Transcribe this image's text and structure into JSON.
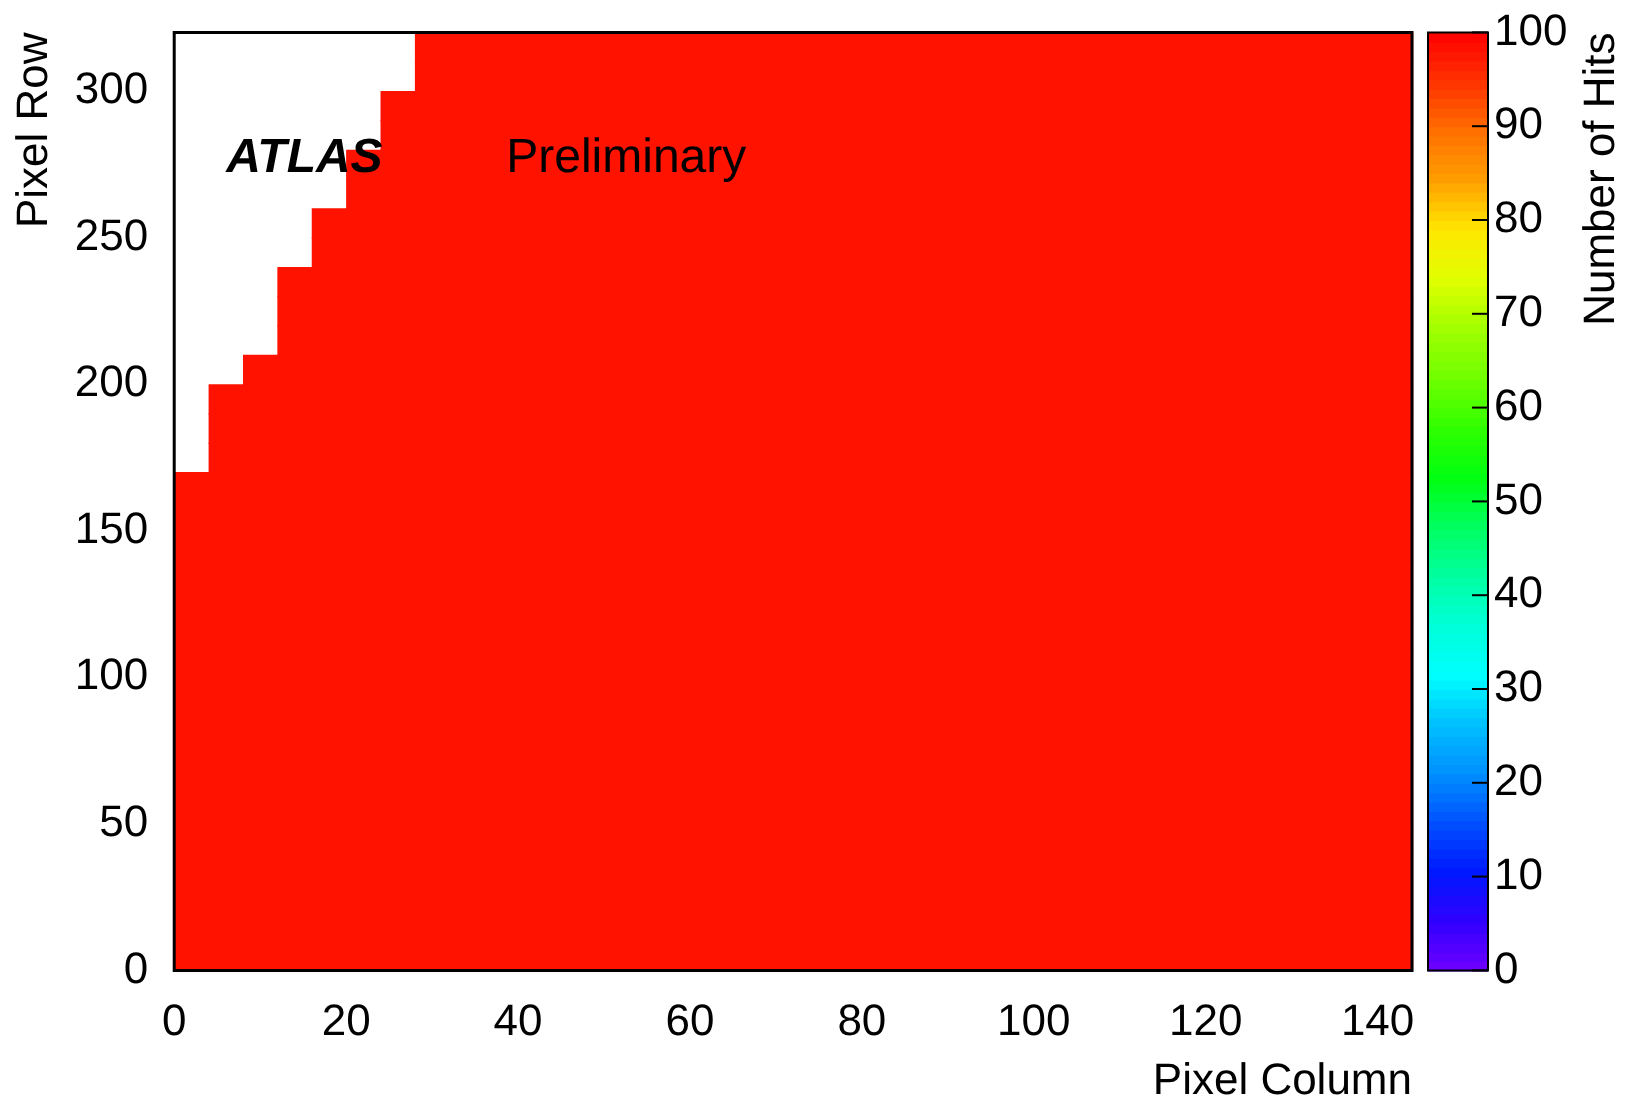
{
  "chart_data": {
    "type": "heatmap",
    "xlabel": "Pixel Column",
    "ylabel": "Pixel Row",
    "clabel": "Number of Hits",
    "annotations": [
      "ATLAS",
      "Preliminary"
    ],
    "x": [
      2,
      6,
      10,
      14,
      18,
      22,
      26,
      30,
      34,
      38,
      42,
      46,
      50,
      54,
      58,
      62,
      66,
      70,
      74,
      78,
      82,
      86,
      90,
      94,
      98,
      102,
      106,
      110,
      114,
      118,
      122,
      126,
      130,
      134,
      138,
      142
    ],
    "y": [
      315,
      305,
      295,
      285,
      275,
      265,
      255,
      245,
      235,
      225,
      215,
      205,
      195,
      185,
      175,
      165,
      155,
      145,
      135,
      125,
      115,
      105,
      95,
      85,
      75,
      65,
      55,
      45,
      35,
      25,
      15,
      5
    ],
    "xlim": [
      0,
      144
    ],
    "xticks": [
      0,
      20,
      40,
      60,
      80,
      100,
      120,
      140
    ],
    "ylim": [
      0,
      320
    ],
    "yticks": [
      0,
      50,
      100,
      150,
      200,
      250,
      300
    ],
    "clim": [
      0,
      100
    ],
    "cticks": [
      0,
      10,
      20,
      30,
      40,
      50,
      60,
      70,
      80,
      90,
      100
    ],
    "grid": false,
    "cells": [
      [
        null,
        null,
        null,
        null,
        null,
        null,
        null,
        98,
        98,
        98,
        98,
        98,
        98,
        98,
        98,
        98,
        98,
        98,
        98,
        98,
        98,
        98,
        98,
        98,
        98,
        98,
        98,
        98,
        98,
        98,
        98,
        98,
        98,
        98,
        98,
        98
      ],
      [
        null,
        null,
        null,
        null,
        null,
        null,
        null,
        98,
        98,
        98,
        98,
        98,
        98,
        98,
        98,
        98,
        98,
        98,
        98,
        98,
        98,
        98,
        98,
        98,
        98,
        98,
        98,
        98,
        98,
        98,
        98,
        98,
        98,
        98,
        98,
        98
      ],
      [
        null,
        null,
        null,
        null,
        null,
        null,
        98,
        98,
        98,
        98,
        98,
        98,
        98,
        98,
        98,
        98,
        98,
        98,
        98,
        98,
        98,
        98,
        98,
        98,
        98,
        98,
        98,
        98,
        98,
        98,
        98,
        98,
        98,
        98,
        98,
        98
      ],
      [
        null,
        null,
        null,
        null,
        null,
        null,
        98,
        98,
        98,
        98,
        98,
        98,
        98,
        98,
        98,
        98,
        98,
        98,
        98,
        98,
        98,
        98,
        98,
        98,
        98,
        98,
        98,
        98,
        98,
        98,
        98,
        98,
        98,
        98,
        98,
        98
      ],
      [
        null,
        null,
        null,
        null,
        null,
        98,
        98,
        98,
        98,
        98,
        98,
        98,
        98,
        98,
        98,
        98,
        98,
        98,
        98,
        98,
        98,
        98,
        98,
        98,
        98,
        98,
        98,
        98,
        98,
        98,
        98,
        98,
        98,
        98,
        98,
        98
      ],
      [
        null,
        null,
        null,
        null,
        null,
        98,
        98,
        98,
        98,
        98,
        98,
        98,
        98,
        98,
        98,
        98,
        98,
        98,
        98,
        98,
        98,
        98,
        98,
        98,
        98,
        98,
        98,
        98,
        98,
        98,
        98,
        98,
        98,
        98,
        98,
        98
      ],
      [
        null,
        null,
        null,
        null,
        98,
        98,
        98,
        98,
        98,
        98,
        98,
        98,
        98,
        98,
        98,
        98,
        98,
        98,
        98,
        98,
        98,
        98,
        98,
        98,
        98,
        98,
        98,
        98,
        98,
        98,
        98,
        98,
        98,
        98,
        98,
        98
      ],
      [
        null,
        null,
        null,
        null,
        98,
        98,
        98,
        98,
        98,
        98,
        98,
        98,
        98,
        98,
        98,
        98,
        98,
        98,
        98,
        98,
        98,
        98,
        98,
        98,
        98,
        98,
        98,
        98,
        98,
        98,
        98,
        98,
        98,
        98,
        98,
        98
      ],
      [
        null,
        null,
        null,
        98,
        98,
        98,
        98,
        98,
        98,
        98,
        98,
        98,
        98,
        98,
        98,
        98,
        98,
        98,
        98,
        98,
        98,
        98,
        98,
        98,
        98,
        98,
        98,
        98,
        98,
        98,
        98,
        98,
        98,
        98,
        98,
        98
      ],
      [
        null,
        null,
        null,
        98,
        98,
        98,
        98,
        98,
        98,
        98,
        98,
        98,
        98,
        98,
        98,
        98,
        98,
        98,
        98,
        98,
        98,
        98,
        98,
        98,
        98,
        98,
        98,
        98,
        98,
        98,
        98,
        98,
        98,
        98,
        98,
        98
      ],
      [
        null,
        null,
        null,
        98,
        98,
        98,
        98,
        98,
        98,
        98,
        98,
        98,
        98,
        98,
        98,
        98,
        98,
        98,
        98,
        98,
        98,
        98,
        98,
        98,
        98,
        98,
        98,
        98,
        98,
        98,
        98,
        98,
        98,
        98,
        98,
        98
      ],
      [
        null,
        null,
        98,
        98,
        98,
        98,
        98,
        98,
        98,
        98,
        98,
        98,
        98,
        98,
        98,
        98,
        98,
        98,
        98,
        98,
        98,
        98,
        98,
        98,
        98,
        98,
        98,
        98,
        98,
        98,
        98,
        98,
        98,
        98,
        98,
        98
      ],
      [
        null,
        98,
        98,
        98,
        98,
        98,
        98,
        98,
        98,
        98,
        98,
        98,
        98,
        98,
        98,
        98,
        98,
        98,
        98,
        98,
        98,
        98,
        98,
        98,
        98,
        98,
        98,
        98,
        98,
        98,
        98,
        98,
        98,
        98,
        98,
        98
      ],
      [
        null,
        98,
        98,
        98,
        98,
        98,
        98,
        98,
        98,
        98,
        98,
        98,
        98,
        98,
        98,
        98,
        98,
        98,
        98,
        98,
        98,
        98,
        98,
        98,
        98,
        98,
        98,
        98,
        98,
        98,
        98,
        98,
        98,
        98,
        98,
        98
      ],
      [
        null,
        98,
        98,
        98,
        98,
        98,
        98,
        98,
        98,
        98,
        98,
        98,
        98,
        98,
        98,
        98,
        98,
        98,
        98,
        98,
        98,
        98,
        98,
        98,
        98,
        98,
        98,
        98,
        98,
        98,
        98,
        98,
        98,
        98,
        98,
        98
      ],
      [
        98,
        98,
        98,
        98,
        98,
        98,
        98,
        98,
        98,
        98,
        98,
        98,
        98,
        98,
        98,
        98,
        98,
        98,
        98,
        98,
        98,
        98,
        98,
        98,
        98,
        98,
        98,
        98,
        98,
        98,
        98,
        98,
        98,
        98,
        98,
        98
      ],
      [
        98,
        98,
        98,
        98,
        98,
        98,
        98,
        98,
        98,
        98,
        98,
        98,
        98,
        98,
        98,
        98,
        98,
        98,
        98,
        98,
        98,
        98,
        98,
        98,
        98,
        98,
        98,
        98,
        98,
        98,
        98,
        98,
        98,
        98,
        98,
        98
      ],
      [
        98,
        98,
        98,
        98,
        98,
        98,
        98,
        98,
        98,
        98,
        98,
        98,
        98,
        98,
        98,
        98,
        98,
        98,
        98,
        98,
        98,
        98,
        98,
        98,
        98,
        98,
        98,
        98,
        98,
        98,
        98,
        98,
        98,
        98,
        98,
        98
      ],
      [
        98,
        98,
        98,
        98,
        98,
        98,
        98,
        98,
        98,
        98,
        98,
        98,
        98,
        98,
        98,
        98,
        98,
        98,
        98,
        98,
        98,
        98,
        98,
        98,
        98,
        98,
        98,
        98,
        98,
        98,
        98,
        98,
        98,
        98,
        98,
        98
      ],
      [
        98,
        98,
        98,
        98,
        98,
        98,
        98,
        98,
        98,
        98,
        98,
        98,
        98,
        98,
        98,
        98,
        98,
        98,
        98,
        98,
        98,
        98,
        98,
        98,
        98,
        98,
        98,
        98,
        98,
        98,
        98,
        98,
        98,
        98,
        98,
        98
      ],
      [
        98,
        98,
        98,
        98,
        98,
        98,
        98,
        98,
        98,
        98,
        98,
        98,
        98,
        98,
        98,
        98,
        98,
        98,
        98,
        98,
        98,
        98,
        98,
        98,
        98,
        98,
        98,
        98,
        98,
        98,
        98,
        98,
        98,
        98,
        98,
        98
      ],
      [
        98,
        98,
        98,
        98,
        98,
        98,
        98,
        98,
        98,
        98,
        98,
        98,
        98,
        98,
        98,
        98,
        98,
        98,
        98,
        98,
        98,
        98,
        98,
        98,
        98,
        98,
        98,
        98,
        98,
        98,
        98,
        98,
        98,
        98,
        98,
        98
      ],
      [
        98,
        98,
        98,
        98,
        98,
        98,
        98,
        98,
        98,
        98,
        98,
        98,
        98,
        98,
        98,
        98,
        98,
        98,
        98,
        98,
        98,
        98,
        98,
        98,
        98,
        98,
        98,
        98,
        98,
        98,
        98,
        98,
        98,
        98,
        98,
        98
      ],
      [
        98,
        98,
        98,
        98,
        98,
        98,
        98,
        98,
        98,
        98,
        98,
        98,
        98,
        98,
        98,
        98,
        98,
        98,
        98,
        98,
        98,
        98,
        98,
        98,
        98,
        98,
        98,
        98,
        98,
        98,
        98,
        98,
        98,
        98,
        98,
        98
      ],
      [
        98,
        98,
        98,
        98,
        98,
        98,
        98,
        98,
        98,
        98,
        98,
        98,
        98,
        98,
        98,
        98,
        98,
        98,
        98,
        98,
        98,
        98,
        98,
        98,
        98,
        98,
        98,
        98,
        98,
        98,
        98,
        98,
        98,
        98,
        98,
        98
      ],
      [
        98,
        98,
        98,
        98,
        98,
        98,
        98,
        98,
        98,
        98,
        98,
        98,
        98,
        98,
        98,
        98,
        98,
        98,
        98,
        98,
        98,
        98,
        98,
        98,
        98,
        98,
        98,
        98,
        98,
        98,
        98,
        98,
        98,
        98,
        98,
        98
      ],
      [
        98,
        98,
        98,
        98,
        98,
        98,
        98,
        98,
        98,
        98,
        98,
        98,
        98,
        98,
        98,
        98,
        98,
        98,
        98,
        98,
        98,
        98,
        98,
        98,
        98,
        98,
        98,
        98,
        98,
        98,
        98,
        98,
        98,
        98,
        98,
        98
      ],
      [
        98,
        98,
        98,
        98,
        98,
        98,
        98,
        98,
        98,
        98,
        98,
        98,
        98,
        98,
        98,
        98,
        98,
        98,
        98,
        98,
        98,
        98,
        98,
        98,
        98,
        98,
        98,
        98,
        98,
        98,
        98,
        98,
        98,
        98,
        98,
        98
      ],
      [
        98,
        98,
        98,
        98,
        98,
        98,
        98,
        98,
        98,
        98,
        98,
        98,
        98,
        98,
        98,
        98,
        98,
        98,
        98,
        98,
        98,
        98,
        98,
        98,
        98,
        98,
        98,
        98,
        98,
        98,
        98,
        98,
        98,
        98,
        98,
        98
      ],
      [
        98,
        98,
        98,
        98,
        98,
        98,
        98,
        98,
        98,
        98,
        98,
        98,
        98,
        98,
        98,
        98,
        98,
        98,
        98,
        98,
        98,
        98,
        98,
        98,
        98,
        98,
        98,
        98,
        98,
        98,
        98,
        98,
        98,
        98,
        98,
        98
      ],
      [
        98,
        98,
        98,
        98,
        98,
        98,
        98,
        98,
        98,
        98,
        98,
        98,
        98,
        98,
        98,
        98,
        98,
        98,
        98,
        98,
        98,
        98,
        98,
        98,
        98,
        98,
        98,
        98,
        98,
        98,
        98,
        98,
        98,
        98,
        98,
        98
      ],
      [
        98,
        98,
        98,
        98,
        98,
        98,
        98,
        98,
        98,
        98,
        98,
        98,
        98,
        98,
        98,
        98,
        98,
        98,
        98,
        98,
        98,
        98,
        98,
        98,
        98,
        98,
        98,
        98,
        98,
        98,
        98,
        98,
        98,
        98,
        98,
        98
      ]
    ]
  }
}
